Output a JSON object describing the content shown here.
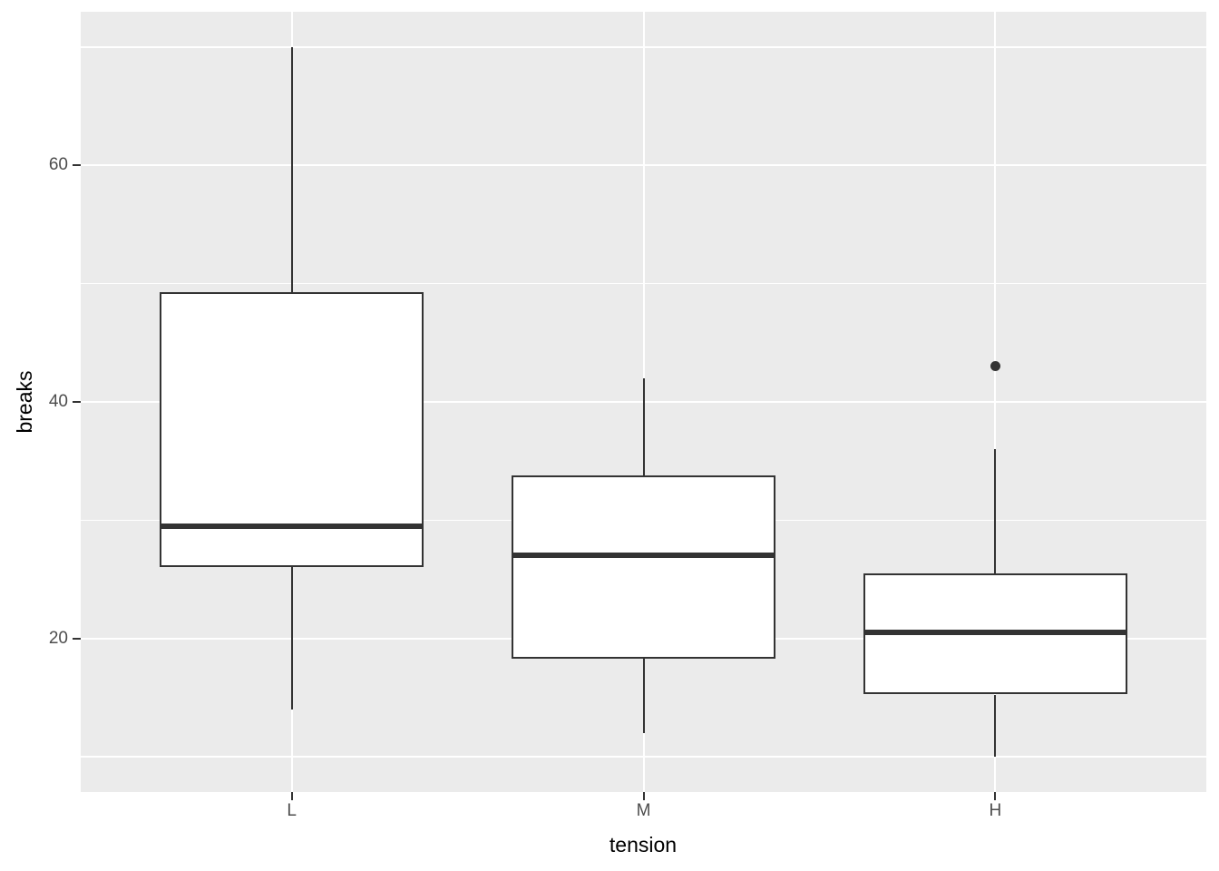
{
  "chart_data": {
    "type": "boxplot",
    "title": "",
    "xlabel": "tension",
    "ylabel": "breaks",
    "categories": [
      "L",
      "M",
      "H"
    ],
    "y_major_ticks": [
      20,
      40,
      60
    ],
    "y_minor_gridlines": [
      10,
      30,
      50,
      70
    ],
    "ylim": [
      7,
      73
    ],
    "grid": "horizontal major+minor, vertical major at each category",
    "legend": "none",
    "series": [
      {
        "category": "L",
        "lower_whisker": 14,
        "q1": 26,
        "median": 29.5,
        "q3": 49.25,
        "upper_whisker": 70,
        "outliers": []
      },
      {
        "category": "M",
        "lower_whisker": 12,
        "q1": 18.25,
        "median": 27,
        "q3": 33.75,
        "upper_whisker": 42,
        "outliers": []
      },
      {
        "category": "H",
        "lower_whisker": 10,
        "q1": 15.25,
        "median": 20.5,
        "q3": 25.5,
        "upper_whisker": 36,
        "outliers": [
          43
        ]
      }
    ],
    "colors": {
      "figure_background": "#FFFFFF",
      "panel_background": "#EBEBEB",
      "gridline": "#FFFFFF",
      "box_outline": "#333333",
      "box_fill": "#FFFFFF",
      "median_line": "#333333",
      "whisker": "#333333",
      "outlier_point": "#333333",
      "tick_mark": "#333333",
      "tick_label": "#4D4D4D",
      "axis_title": "#000000"
    }
  }
}
